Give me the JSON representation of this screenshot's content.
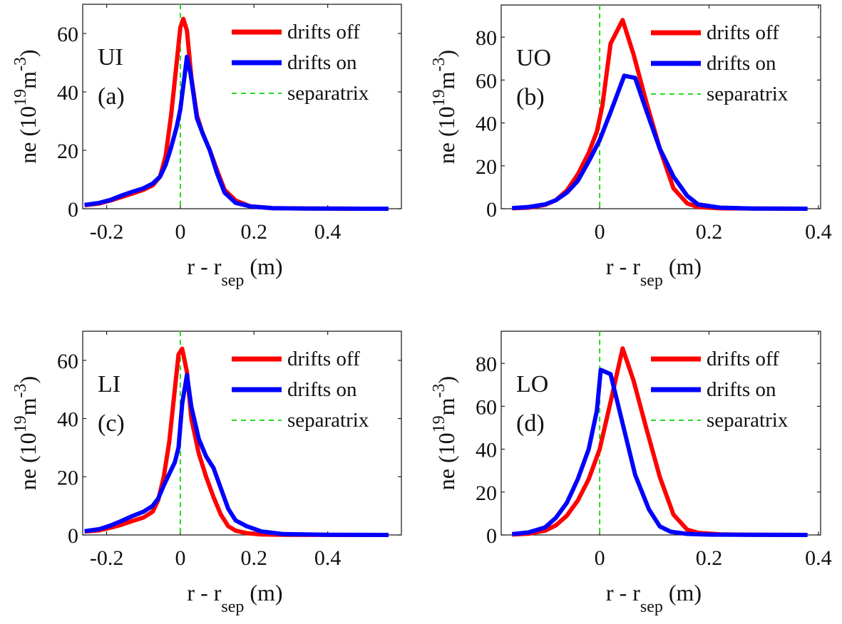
{
  "figure": {
    "legend": {
      "entries": [
        {
          "label": "drifts off",
          "color": "#ff0000",
          "style": "solid"
        },
        {
          "label": "drifts on",
          "color": "#0000ff",
          "style": "solid"
        },
        {
          "label": "separatrix",
          "color": "#22dd22",
          "style": "dashed"
        }
      ]
    },
    "xlabel": {
      "main": "r - r",
      "sub": "sep",
      "unit": "(m)"
    },
    "ylabel": {
      "main": "ne (10",
      "sup1": "19",
      "mid": "m",
      "sup2": "-3",
      "end": ")"
    }
  },
  "chart_data": [
    {
      "type": "line",
      "panel": "UI",
      "tag": "(a)",
      "xlabel": "r - r_sep (m)",
      "ylabel": "ne (10^19 m^-3)",
      "xlim": [
        -0.265,
        0.6
      ],
      "ylim": [
        0,
        70
      ],
      "xticks": [
        -0.2,
        0,
        0.2,
        0.4
      ],
      "xtick_labels": [
        "-0.2",
        "0",
        "0.2",
        "0.4"
      ],
      "yticks": [
        0,
        20,
        40,
        60
      ],
      "ytick_labels": [
        "0",
        "20",
        "40",
        "60"
      ],
      "separatrix_x": 0,
      "legend_position": "top-right",
      "series": [
        {
          "name": "drifts off",
          "color": "#ff0000",
          "x": [
            -0.26,
            -0.22,
            -0.19,
            -0.16,
            -0.13,
            -0.1,
            -0.075,
            -0.055,
            -0.04,
            -0.025,
            -0.01,
            0.0,
            0.008,
            0.018,
            0.03,
            0.045,
            0.06,
            0.08,
            0.1,
            0.12,
            0.15,
            0.19,
            0.25,
            0.35,
            0.45,
            0.565
          ],
          "y": [
            1.2,
            1.8,
            2.8,
            4.0,
            5.2,
            6.5,
            8.0,
            11,
            18,
            32,
            50,
            62,
            65,
            61,
            45,
            32,
            26,
            20,
            13,
            6.5,
            2.8,
            0.8,
            0.2,
            0.05,
            0.02,
            0.0
          ]
        },
        {
          "name": "drifts on",
          "color": "#0000ff",
          "x": [
            -0.26,
            -0.22,
            -0.19,
            -0.16,
            -0.13,
            -0.1,
            -0.075,
            -0.055,
            -0.04,
            -0.025,
            -0.01,
            0.0,
            0.01,
            0.018,
            0.028,
            0.045,
            0.06,
            0.08,
            0.1,
            0.12,
            0.15,
            0.19,
            0.25,
            0.35,
            0.45,
            0.565
          ],
          "y": [
            1.3,
            2.0,
            3.0,
            4.5,
            5.8,
            7.0,
            8.6,
            11,
            15,
            21,
            28,
            34,
            44,
            52,
            46,
            31,
            26,
            20,
            12,
            5.5,
            2.0,
            0.8,
            0.2,
            0.05,
            0.02,
            0.0
          ]
        }
      ]
    },
    {
      "type": "line",
      "panel": "UO",
      "tag": "(b)",
      "xlabel": "r - r_sep (m)",
      "ylabel": "ne (10^19 m^-3)",
      "xlim": [
        -0.18,
        0.404
      ],
      "ylim": [
        0,
        95
      ],
      "xticks": [
        0,
        0.2,
        0.4
      ],
      "xtick_labels": [
        "0",
        "0.2",
        "0.4"
      ],
      "yticks": [
        0,
        20,
        40,
        60,
        80
      ],
      "ytick_labels": [
        "0",
        "20",
        "40",
        "60",
        "80"
      ],
      "separatrix_x": 0,
      "legend_position": "top-right",
      "series": [
        {
          "name": "drifts off",
          "color": "#ff0000",
          "x": [
            -0.16,
            -0.13,
            -0.1,
            -0.08,
            -0.06,
            -0.04,
            -0.02,
            -0.005,
            0.005,
            0.02,
            0.042,
            0.062,
            0.085,
            0.11,
            0.135,
            0.16,
            0.18,
            0.22,
            0.28,
            0.34,
            0.38
          ],
          "y": [
            0.2,
            0.5,
            1.8,
            4.0,
            8.5,
            16,
            26,
            36,
            48,
            77,
            88,
            72,
            50,
            28,
            9.5,
            2.5,
            0.8,
            0.2,
            0.05,
            0.02,
            0.0
          ]
        },
        {
          "name": "drifts on",
          "color": "#0000ff",
          "x": [
            -0.16,
            -0.13,
            -0.1,
            -0.08,
            -0.06,
            -0.04,
            -0.02,
            0.0,
            0.02,
            0.045,
            0.065,
            0.085,
            0.11,
            0.135,
            0.16,
            0.18,
            0.22,
            0.28,
            0.34,
            0.38
          ],
          "y": [
            0.3,
            0.8,
            2.0,
            4.0,
            7.5,
            13,
            22,
            32,
            45,
            62,
            61,
            46,
            28,
            15,
            6,
            2,
            0.5,
            0.1,
            0.02,
            0.0
          ]
        }
      ]
    },
    {
      "type": "line",
      "panel": "LI",
      "tag": "(c)",
      "xlabel": "r - r_sep (m)",
      "ylabel": "ne (10^19 m^-3)",
      "xlim": [
        -0.265,
        0.6
      ],
      "ylim": [
        0,
        70
      ],
      "xticks": [
        -0.2,
        0,
        0.2,
        0.4
      ],
      "xtick_labels": [
        "-0.2",
        "0",
        "0.2",
        "0.4"
      ],
      "yticks": [
        0,
        20,
        40,
        60
      ],
      "ytick_labels": [
        "0",
        "20",
        "40",
        "60"
      ],
      "separatrix_x": 0,
      "legend_position": "top-right",
      "series": [
        {
          "name": "drifts off",
          "color": "#ff0000",
          "x": [
            -0.26,
            -0.22,
            -0.19,
            -0.16,
            -0.13,
            -0.1,
            -0.075,
            -0.06,
            -0.045,
            -0.03,
            -0.015,
            -0.005,
            0.005,
            0.018,
            0.03,
            0.05,
            0.07,
            0.09,
            0.11,
            0.13,
            0.15,
            0.18,
            0.22,
            0.28,
            0.4,
            0.565
          ],
          "y": [
            1.2,
            1.6,
            2.5,
            3.5,
            4.8,
            6.0,
            8.0,
            12,
            20,
            32,
            50,
            62,
            64,
            56,
            40,
            28,
            20,
            13,
            7,
            3,
            1.5,
            0.6,
            0.2,
            0.05,
            0.02,
            0.0
          ]
        },
        {
          "name": "drifts on",
          "color": "#0000ff",
          "x": [
            -0.26,
            -0.22,
            -0.19,
            -0.16,
            -0.13,
            -0.1,
            -0.075,
            -0.06,
            -0.045,
            -0.03,
            -0.015,
            -0.005,
            0.005,
            0.018,
            0.03,
            0.05,
            0.07,
            0.09,
            0.11,
            0.13,
            0.15,
            0.18,
            0.22,
            0.28,
            0.4,
            0.565
          ],
          "y": [
            1.3,
            2.0,
            3.2,
            4.8,
            6.5,
            8.0,
            10,
            12.5,
            17,
            21,
            25,
            30,
            45,
            55,
            44,
            33,
            27,
            23,
            16,
            9,
            5,
            3,
            1.2,
            0.3,
            0.05,
            0.0
          ]
        }
      ]
    },
    {
      "type": "line",
      "panel": "LO",
      "tag": "(d)",
      "xlabel": "r - r_sep (m)",
      "ylabel": "ne (10^19 m^-3)",
      "xlim": [
        -0.18,
        0.404
      ],
      "ylim": [
        0,
        95
      ],
      "xticks": [
        0,
        0.2,
        0.4
      ],
      "xtick_labels": [
        "0",
        "0.2",
        "0.4"
      ],
      "yticks": [
        0,
        20,
        40,
        60,
        80
      ],
      "ytick_labels": [
        "0",
        "20",
        "40",
        "60",
        "80"
      ],
      "separatrix_x": 0,
      "legend_position": "top-right",
      "series": [
        {
          "name": "drifts off",
          "color": "#ff0000",
          "x": [
            -0.16,
            -0.13,
            -0.1,
            -0.08,
            -0.06,
            -0.04,
            -0.02,
            0.0,
            0.02,
            0.042,
            0.062,
            0.085,
            0.11,
            0.135,
            0.16,
            0.18,
            0.22,
            0.28,
            0.34,
            0.38
          ],
          "y": [
            0.2,
            0.6,
            2.0,
            4.5,
            9,
            16,
            26,
            40,
            62,
            87,
            72,
            50,
            27,
            9.5,
            2.5,
            1.0,
            0.3,
            0.05,
            0.02,
            0.0
          ]
        },
        {
          "name": "drifts on",
          "color": "#0000ff",
          "x": [
            -0.16,
            -0.13,
            -0.1,
            -0.08,
            -0.06,
            -0.04,
            -0.02,
            -0.005,
            0.002,
            0.02,
            0.04,
            0.065,
            0.09,
            0.11,
            0.13,
            0.16,
            0.2,
            0.26,
            0.34,
            0.38
          ],
          "y": [
            0.4,
            1.2,
            3.5,
            8,
            15,
            26,
            40,
            58,
            77,
            75,
            54,
            28,
            12,
            4,
            1.5,
            0.5,
            0.15,
            0.05,
            0.02,
            0.0
          ]
        }
      ]
    }
  ]
}
